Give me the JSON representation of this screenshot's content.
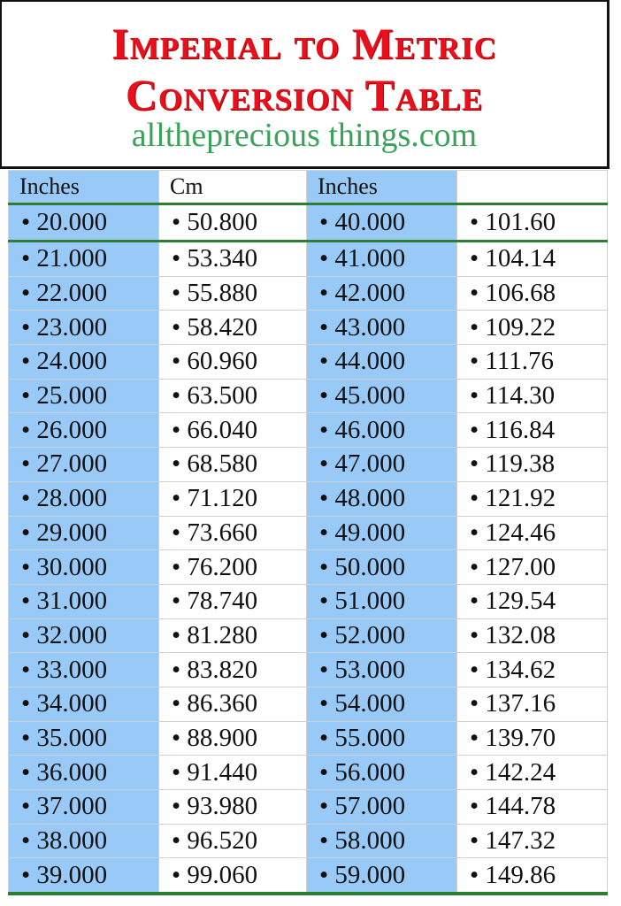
{
  "title": {
    "line1": "Imperial to Metric",
    "line2": "Conversion Table",
    "site": "alltheprecious things.com"
  },
  "table": {
    "headers": [
      "Inches",
      "Cm",
      "Inches",
      ""
    ],
    "colors": {
      "blue": "#99c9f7",
      "green_rule": "#2e7d32",
      "title_red": "#e8101c",
      "site_green": "#3aa35a"
    },
    "rows": [
      [
        "• 20.000",
        "• 50.800",
        "• 40.000",
        "• 101.60"
      ],
      [
        "• 21.000",
        "• 53.340",
        "• 41.000",
        "• 104.14"
      ],
      [
        "• 22.000",
        "• 55.880",
        "• 42.000",
        "• 106.68"
      ],
      [
        "• 23.000",
        "• 58.420",
        "• 43.000",
        "• 109.22"
      ],
      [
        "• 24.000",
        "• 60.960",
        "• 44.000",
        "• 111.76"
      ],
      [
        "• 25.000",
        "• 63.500",
        "• 45.000",
        "• 114.30"
      ],
      [
        "• 26.000",
        "• 66.040",
        "• 46.000",
        "• 116.84"
      ],
      [
        "• 27.000",
        "• 68.580",
        "• 47.000",
        "• 119.38"
      ],
      [
        "• 28.000",
        "• 71.120",
        "• 48.000",
        "• 121.92"
      ],
      [
        "• 29.000",
        "• 73.660",
        "• 49.000",
        "• 124.46"
      ],
      [
        "• 30.000",
        "• 76.200",
        "• 50.000",
        "• 127.00"
      ],
      [
        "• 31.000",
        "• 78.740",
        "• 51.000",
        "• 129.54"
      ],
      [
        "• 32.000",
        "• 81.280",
        "• 52.000",
        "• 132.08"
      ],
      [
        "• 33.000",
        "• 83.820",
        "• 53.000",
        "• 134.62"
      ],
      [
        "• 34.000",
        "• 86.360",
        "• 54.000",
        "• 137.16"
      ],
      [
        "• 35.000",
        "• 88.900",
        "• 55.000",
        "• 139.70"
      ],
      [
        "• 36.000",
        "• 91.440",
        "• 56.000",
        "• 142.24"
      ],
      [
        "• 37.000",
        "• 93.980",
        "• 57.000",
        "• 144.78"
      ],
      [
        "• 38.000",
        "• 96.520",
        "• 58.000",
        "• 147.32"
      ],
      [
        "• 39.000",
        "• 99.060",
        "• 59.000",
        "• 149.86"
      ]
    ]
  }
}
